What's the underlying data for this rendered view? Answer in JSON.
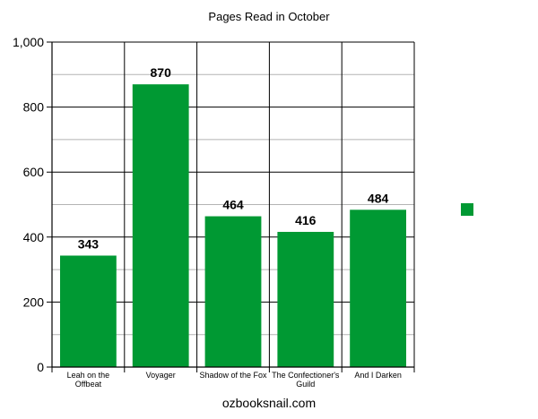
{
  "chart_data": {
    "type": "bar",
    "title": "Pages Read in October",
    "xlabel": "ozbooksnail.com",
    "ylabel": "",
    "categories": [
      [
        "Leah on the",
        "Offbeat"
      ],
      [
        "Voyager"
      ],
      [
        "Shadow of the Fox"
      ],
      [
        "The Confectioner's",
        "Guild"
      ],
      [
        "And I Darken"
      ]
    ],
    "values": [
      343,
      870,
      464,
      416,
      484
    ],
    "ylim": [
      0,
      1000
    ],
    "yticks": [
      0,
      200,
      400,
      600,
      800,
      1000
    ],
    "ytick_labels": [
      "0",
      "200",
      "400",
      "600",
      "800",
      "1,000"
    ],
    "minor_grid_step": 100,
    "grid": true,
    "data_labels": true,
    "bar_color": "#009933",
    "legend": {
      "placement": "right",
      "entries": [
        {
          "color": "#009933",
          "label": ""
        }
      ]
    }
  }
}
